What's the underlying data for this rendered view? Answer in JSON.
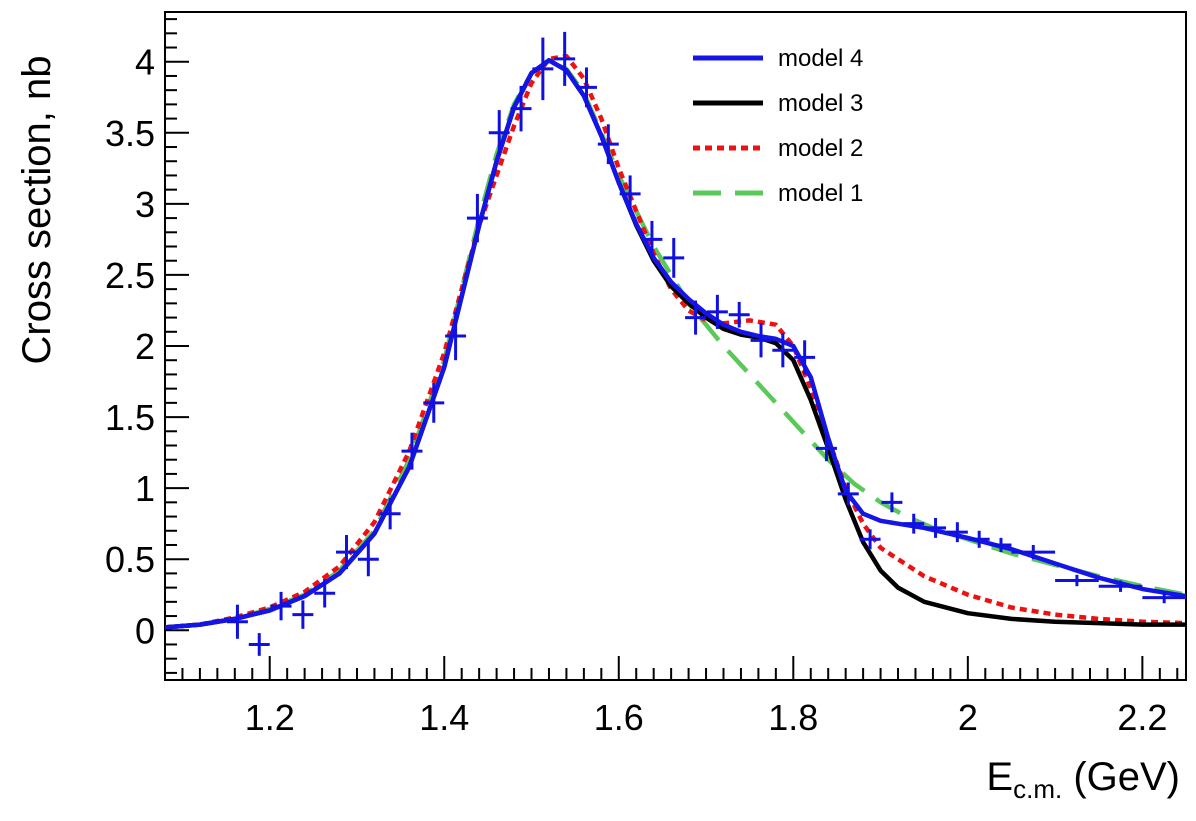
{
  "chart_data": {
    "type": "line",
    "title": "",
    "xlabel": {
      "main": "E",
      "sub": "c.m.",
      "unit": " (GeV)"
    },
    "ylabel": "Cross section, nb",
    "xlim": [
      1.08,
      2.25
    ],
    "ylim": [
      -0.35,
      4.35
    ],
    "grid": false,
    "legend_position": "top-right",
    "x_ticks": [
      {
        "value": 1.2,
        "label": "1.2"
      },
      {
        "value": 1.4,
        "label": "1.4"
      },
      {
        "value": 1.6,
        "label": "1.6"
      },
      {
        "value": 1.8,
        "label": "1.8"
      },
      {
        "value": 2.0,
        "label": "2"
      },
      {
        "value": 2.2,
        "label": "2.2"
      }
    ],
    "y_ticks": [
      {
        "value": 0,
        "label": "0"
      },
      {
        "value": 0.5,
        "label": "0.5"
      },
      {
        "value": 1,
        "label": "1"
      },
      {
        "value": 1.5,
        "label": "1.5"
      },
      {
        "value": 2,
        "label": "2"
      },
      {
        "value": 2.5,
        "label": "2.5"
      },
      {
        "value": 3,
        "label": "3"
      },
      {
        "value": 3.5,
        "label": "3.5"
      },
      {
        "value": 4,
        "label": "4"
      }
    ],
    "data_points": {
      "name": "data",
      "color": "#1010e0",
      "points": [
        {
          "x": 1.163,
          "y": 0.06,
          "xerr": 0.012,
          "yerr": 0.12
        },
        {
          "x": 1.188,
          "y": -0.1,
          "xerr": 0.012,
          "yerr": 0.08
        },
        {
          "x": 1.213,
          "y": 0.17,
          "xerr": 0.012,
          "yerr": 0.1
        },
        {
          "x": 1.238,
          "y": 0.11,
          "xerr": 0.012,
          "yerr": 0.1
        },
        {
          "x": 1.263,
          "y": 0.26,
          "xerr": 0.012,
          "yerr": 0.1
        },
        {
          "x": 1.288,
          "y": 0.55,
          "xerr": 0.012,
          "yerr": 0.12
        },
        {
          "x": 1.313,
          "y": 0.5,
          "xerr": 0.012,
          "yerr": 0.12
        },
        {
          "x": 1.338,
          "y": 0.82,
          "xerr": 0.012,
          "yerr": 0.11
        },
        {
          "x": 1.363,
          "y": 1.26,
          "xerr": 0.012,
          "yerr": 0.13
        },
        {
          "x": 1.388,
          "y": 1.6,
          "xerr": 0.012,
          "yerr": 0.14
        },
        {
          "x": 1.413,
          "y": 2.07,
          "xerr": 0.012,
          "yerr": 0.17
        },
        {
          "x": 1.438,
          "y": 2.9,
          "xerr": 0.012,
          "yerr": 0.17
        },
        {
          "x": 1.463,
          "y": 3.5,
          "xerr": 0.012,
          "yerr": 0.16
        },
        {
          "x": 1.488,
          "y": 3.67,
          "xerr": 0.012,
          "yerr": 0.16
        },
        {
          "x": 1.513,
          "y": 3.95,
          "xerr": 0.012,
          "yerr": 0.22
        },
        {
          "x": 1.538,
          "y": 4.02,
          "xerr": 0.012,
          "yerr": 0.19
        },
        {
          "x": 1.563,
          "y": 3.82,
          "xerr": 0.012,
          "yerr": 0.14
        },
        {
          "x": 1.588,
          "y": 3.42,
          "xerr": 0.012,
          "yerr": 0.14
        },
        {
          "x": 1.613,
          "y": 3.07,
          "xerr": 0.012,
          "yerr": 0.13
        },
        {
          "x": 1.638,
          "y": 2.75,
          "xerr": 0.012,
          "yerr": 0.13
        },
        {
          "x": 1.663,
          "y": 2.62,
          "xerr": 0.012,
          "yerr": 0.14
        },
        {
          "x": 1.688,
          "y": 2.2,
          "xerr": 0.012,
          "yerr": 0.12
        },
        {
          "x": 1.713,
          "y": 2.24,
          "xerr": 0.012,
          "yerr": 0.12
        },
        {
          "x": 1.738,
          "y": 2.22,
          "xerr": 0.012,
          "yerr": 0.09
        },
        {
          "x": 1.763,
          "y": 2.04,
          "xerr": 0.012,
          "yerr": 0.12
        },
        {
          "x": 1.788,
          "y": 1.97,
          "xerr": 0.012,
          "yerr": 0.12
        },
        {
          "x": 1.813,
          "y": 1.92,
          "xerr": 0.012,
          "yerr": 0.12
        },
        {
          "x": 1.838,
          "y": 1.28,
          "xerr": 0.012,
          "yerr": 0.09
        },
        {
          "x": 1.863,
          "y": 0.96,
          "xerr": 0.012,
          "yerr": 0.08
        },
        {
          "x": 1.888,
          "y": 0.64,
          "xerr": 0.012,
          "yerr": 0.07
        },
        {
          "x": 1.913,
          "y": 0.9,
          "xerr": 0.012,
          "yerr": 0.07
        },
        {
          "x": 1.938,
          "y": 0.75,
          "xerr": 0.012,
          "yerr": 0.07
        },
        {
          "x": 1.963,
          "y": 0.72,
          "xerr": 0.012,
          "yerr": 0.07
        },
        {
          "x": 1.988,
          "y": 0.69,
          "xerr": 0.012,
          "yerr": 0.07
        },
        {
          "x": 2.013,
          "y": 0.64,
          "xerr": 0.012,
          "yerr": 0.06
        },
        {
          "x": 2.038,
          "y": 0.6,
          "xerr": 0.012,
          "yerr": 0.05
        },
        {
          "x": 2.075,
          "y": 0.55,
          "xerr": 0.025,
          "yerr": 0.05
        },
        {
          "x": 2.125,
          "y": 0.35,
          "xerr": 0.025,
          "yerr": 0.04
        },
        {
          "x": 2.175,
          "y": 0.31,
          "xerr": 0.025,
          "yerr": 0.04
        },
        {
          "x": 2.225,
          "y": 0.23,
          "xerr": 0.025,
          "yerr": 0.04
        }
      ]
    },
    "series": [
      {
        "name": "model 1",
        "color": "#5ac85a",
        "dash": "28,14",
        "x": [
          1.08,
          1.12,
          1.16,
          1.2,
          1.24,
          1.28,
          1.32,
          1.36,
          1.4,
          1.42,
          1.44,
          1.46,
          1.48,
          1.5,
          1.52,
          1.54,
          1.56,
          1.58,
          1.6,
          1.62,
          1.64,
          1.66,
          1.68,
          1.7,
          1.72,
          1.75,
          1.78,
          1.81,
          1.84,
          1.87,
          1.9,
          1.93,
          1.96,
          2.0,
          2.05,
          2.1,
          2.15,
          2.2,
          2.25
        ],
        "values": [
          0.02,
          0.04,
          0.08,
          0.15,
          0.25,
          0.42,
          0.7,
          1.2,
          1.9,
          2.4,
          2.9,
          3.35,
          3.7,
          3.92,
          4.0,
          3.95,
          3.78,
          3.5,
          3.2,
          2.95,
          2.7,
          2.5,
          2.3,
          2.15,
          2.0,
          1.8,
          1.6,
          1.4,
          1.2,
          1.03,
          0.9,
          0.8,
          0.72,
          0.64,
          0.54,
          0.46,
          0.38,
          0.31,
          0.25
        ]
      },
      {
        "name": "model 2",
        "color": "#ee1111",
        "dash": "7,5",
        "x": [
          1.08,
          1.12,
          1.16,
          1.2,
          1.24,
          1.28,
          1.32,
          1.36,
          1.4,
          1.42,
          1.44,
          1.46,
          1.48,
          1.5,
          1.52,
          1.54,
          1.56,
          1.58,
          1.6,
          1.62,
          1.64,
          1.66,
          1.68,
          1.7,
          1.72,
          1.75,
          1.78,
          1.8,
          1.82,
          1.84,
          1.86,
          1.88,
          1.9,
          1.95,
          2.0,
          2.05,
          2.1,
          2.15,
          2.2,
          2.25
        ],
        "values": [
          0.02,
          0.04,
          0.09,
          0.16,
          0.27,
          0.45,
          0.76,
          1.26,
          1.95,
          2.4,
          2.85,
          3.2,
          3.55,
          3.85,
          4.02,
          4.04,
          3.88,
          3.6,
          3.25,
          2.95,
          2.65,
          2.4,
          2.25,
          2.18,
          2.16,
          2.18,
          2.15,
          2.0,
          1.7,
          1.35,
          1.0,
          0.75,
          0.58,
          0.38,
          0.25,
          0.16,
          0.11,
          0.08,
          0.06,
          0.05
        ]
      },
      {
        "name": "model 3",
        "color": "#000000",
        "dash": "",
        "x": [
          1.08,
          1.12,
          1.16,
          1.2,
          1.24,
          1.28,
          1.32,
          1.36,
          1.4,
          1.42,
          1.44,
          1.46,
          1.48,
          1.5,
          1.52,
          1.54,
          1.56,
          1.58,
          1.6,
          1.62,
          1.64,
          1.66,
          1.68,
          1.7,
          1.72,
          1.74,
          1.76,
          1.78,
          1.8,
          1.82,
          1.84,
          1.86,
          1.88,
          1.9,
          1.92,
          1.95,
          2.0,
          2.05,
          2.1,
          2.15,
          2.2,
          2.25
        ],
        "values": [
          0.02,
          0.04,
          0.08,
          0.14,
          0.24,
          0.4,
          0.68,
          1.15,
          1.85,
          2.35,
          2.85,
          3.3,
          3.68,
          3.92,
          4.01,
          3.94,
          3.76,
          3.48,
          3.15,
          2.85,
          2.6,
          2.42,
          2.3,
          2.2,
          2.12,
          2.08,
          2.06,
          2.02,
          1.9,
          1.62,
          1.28,
          0.92,
          0.62,
          0.42,
          0.3,
          0.2,
          0.12,
          0.08,
          0.06,
          0.05,
          0.04,
          0.04
        ]
      },
      {
        "name": "model 4",
        "color": "#1515e8",
        "dash": "",
        "x": [
          1.08,
          1.12,
          1.16,
          1.2,
          1.24,
          1.28,
          1.32,
          1.36,
          1.4,
          1.42,
          1.44,
          1.46,
          1.48,
          1.5,
          1.52,
          1.54,
          1.56,
          1.58,
          1.6,
          1.62,
          1.64,
          1.66,
          1.68,
          1.7,
          1.72,
          1.74,
          1.76,
          1.78,
          1.8,
          1.82,
          1.84,
          1.86,
          1.88,
          1.9,
          1.92,
          1.95,
          2.0,
          2.05,
          2.1,
          2.15,
          2.2,
          2.25
        ],
        "values": [
          0.02,
          0.04,
          0.08,
          0.14,
          0.24,
          0.4,
          0.68,
          1.15,
          1.85,
          2.35,
          2.85,
          3.3,
          3.68,
          3.92,
          4.01,
          3.94,
          3.76,
          3.48,
          3.15,
          2.86,
          2.62,
          2.45,
          2.33,
          2.23,
          2.15,
          2.1,
          2.07,
          2.05,
          2.0,
          1.78,
          1.35,
          0.98,
          0.82,
          0.77,
          0.75,
          0.72,
          0.65,
          0.57,
          0.47,
          0.37,
          0.29,
          0.24
        ]
      }
    ],
    "legend": [
      {
        "label": "model 4",
        "color": "#1515e8",
        "dash": ""
      },
      {
        "label": "model 3",
        "color": "#000000",
        "dash": ""
      },
      {
        "label": "model 2",
        "color": "#ee1111",
        "dash": "7,5"
      },
      {
        "label": "model 1",
        "color": "#5ac85a",
        "dash": "28,14"
      }
    ]
  }
}
